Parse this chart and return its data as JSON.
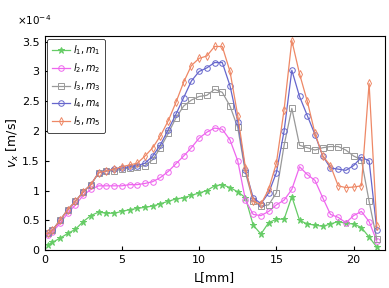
{
  "xlabel": "L[mm]",
  "ylabel": "v_x [m/s]",
  "xlim": [
    0,
    22
  ],
  "ylim": [
    0,
    3.6
  ],
  "ytick_vals": [
    0,
    0.5,
    1.0,
    1.5,
    2.0,
    2.5,
    3.0,
    3.5
  ],
  "ytick_labels": [
    "0",
    "0.5",
    "1",
    "1.5",
    "2",
    "2.5",
    "3",
    "3.5"
  ],
  "xtick_vals": [
    0,
    5,
    10,
    15,
    20
  ],
  "xtick_labels": [
    "0",
    "5",
    "10",
    "15",
    "20"
  ],
  "exponent_text": "x 10^{-4}",
  "series": [
    {
      "label": "$l_1,  m_1$",
      "color": "#66cc66",
      "marker": "*",
      "markersize": 5,
      "markerfacecolor": "#66cc66",
      "x": [
        0.2,
        0.5,
        1.0,
        1.5,
        2.0,
        2.5,
        3.0,
        3.5,
        4.0,
        4.5,
        5.0,
        5.5,
        6.0,
        6.5,
        7.0,
        7.5,
        8.0,
        8.5,
        9.0,
        9.5,
        10.0,
        10.5,
        11.0,
        11.5,
        12.0,
        12.5,
        13.0,
        13.5,
        14.0,
        14.5,
        15.0,
        15.5,
        16.0,
        16.5,
        17.0,
        17.5,
        18.0,
        18.5,
        19.0,
        19.5,
        20.0,
        20.5,
        21.0,
        21.5
      ],
      "y": [
        0.08,
        0.13,
        0.2,
        0.28,
        0.35,
        0.48,
        0.58,
        0.64,
        0.62,
        0.62,
        0.65,
        0.68,
        0.7,
        0.72,
        0.74,
        0.78,
        0.82,
        0.86,
        0.88,
        0.92,
        0.96,
        1.0,
        1.08,
        1.1,
        1.05,
        0.98,
        0.88,
        0.42,
        0.27,
        0.46,
        0.52,
        0.52,
        0.9,
        0.5,
        0.44,
        0.42,
        0.4,
        0.44,
        0.48,
        0.45,
        0.44,
        0.38,
        0.22,
        0.05
      ]
    },
    {
      "label": "$l_2,  m_2$",
      "color": "#ee66ee",
      "marker": "o",
      "markersize": 4,
      "markerfacecolor": "none",
      "x": [
        0.2,
        0.5,
        1.0,
        1.5,
        2.0,
        2.5,
        3.0,
        3.5,
        4.0,
        4.5,
        5.0,
        5.5,
        6.0,
        6.5,
        7.0,
        7.5,
        8.0,
        8.5,
        9.0,
        9.5,
        10.0,
        10.5,
        11.0,
        11.5,
        12.0,
        12.5,
        13.0,
        13.5,
        14.0,
        14.5,
        15.0,
        15.5,
        16.0,
        16.5,
        17.0,
        17.5,
        18.0,
        18.5,
        19.0,
        19.5,
        20.0,
        20.5,
        21.0,
        21.5
      ],
      "y": [
        0.26,
        0.3,
        0.45,
        0.62,
        0.76,
        0.92,
        1.02,
        1.08,
        1.08,
        1.08,
        1.08,
        1.1,
        1.1,
        1.12,
        1.15,
        1.22,
        1.32,
        1.45,
        1.58,
        1.72,
        1.88,
        1.98,
        2.05,
        2.03,
        1.85,
        1.5,
        0.84,
        0.6,
        0.58,
        0.65,
        0.76,
        0.84,
        1.02,
        1.4,
        1.27,
        1.17,
        0.88,
        0.6,
        0.55,
        0.46,
        0.58,
        0.65,
        0.48,
        0.15
      ]
    },
    {
      "label": "$l_3,  m_3$",
      "color": "#999999",
      "marker": "s",
      "markersize": 4,
      "markerfacecolor": "none",
      "x": [
        0.2,
        0.5,
        1.0,
        1.5,
        2.0,
        2.5,
        3.0,
        3.5,
        4.0,
        4.5,
        5.0,
        5.5,
        6.0,
        6.5,
        7.0,
        7.5,
        8.0,
        8.5,
        9.0,
        9.5,
        10.0,
        10.5,
        11.0,
        11.5,
        12.0,
        12.5,
        13.0,
        13.5,
        14.0,
        14.5,
        15.0,
        15.5,
        16.0,
        16.5,
        17.0,
        17.5,
        18.0,
        18.5,
        19.0,
        19.5,
        20.0,
        20.5,
        21.0,
        21.5
      ],
      "y": [
        0.28,
        0.33,
        0.5,
        0.68,
        0.82,
        0.98,
        1.1,
        1.3,
        1.33,
        1.33,
        1.36,
        1.38,
        1.4,
        1.42,
        1.52,
        1.72,
        1.96,
        2.22,
        2.42,
        2.52,
        2.58,
        2.6,
        2.7,
        2.65,
        2.42,
        2.06,
        1.3,
        0.82,
        0.74,
        0.76,
        0.96,
        1.76,
        2.38,
        1.76,
        1.72,
        1.68,
        1.72,
        1.74,
        1.74,
        1.68,
        1.58,
        1.52,
        0.82,
        0.18
      ]
    },
    {
      "label": "$l_4,  m_4$",
      "color": "#6666cc",
      "marker": "o",
      "markersize": 4,
      "markerfacecolor": "none",
      "x": [
        0.2,
        0.5,
        1.0,
        1.5,
        2.0,
        2.5,
        3.0,
        3.5,
        4.0,
        4.5,
        5.0,
        5.5,
        6.0,
        6.5,
        7.0,
        7.5,
        8.0,
        8.5,
        9.0,
        9.5,
        10.0,
        10.5,
        11.0,
        11.5,
        12.0,
        12.5,
        13.0,
        13.5,
        14.0,
        14.5,
        15.0,
        15.5,
        16.0,
        16.5,
        17.0,
        17.5,
        18.0,
        18.5,
        19.0,
        19.5,
        20.0,
        20.5,
        21.0,
        21.5
      ],
      "y": [
        0.28,
        0.33,
        0.5,
        0.68,
        0.82,
        0.98,
        1.1,
        1.3,
        1.33,
        1.36,
        1.38,
        1.4,
        1.42,
        1.46,
        1.58,
        1.77,
        2.02,
        2.28,
        2.56,
        2.84,
        3.0,
        3.06,
        3.15,
        3.15,
        2.76,
        2.16,
        1.34,
        0.88,
        0.78,
        0.96,
        1.3,
        2.0,
        3.02,
        2.58,
        2.26,
        1.94,
        1.58,
        1.38,
        1.36,
        1.34,
        1.42,
        1.56,
        1.5,
        0.34
      ]
    },
    {
      "label": "$l_5,  m_5$",
      "color": "#ee8866",
      "marker": "d",
      "markersize": 4,
      "markerfacecolor": "none",
      "x": [
        0.2,
        0.5,
        1.0,
        1.5,
        2.0,
        2.5,
        3.0,
        3.5,
        4.0,
        4.5,
        5.0,
        5.5,
        6.0,
        6.5,
        7.0,
        7.5,
        8.0,
        8.5,
        9.0,
        9.5,
        10.0,
        10.5,
        11.0,
        11.5,
        12.0,
        12.5,
        13.0,
        13.5,
        14.0,
        14.5,
        15.0,
        15.5,
        16.0,
        16.5,
        17.0,
        17.5,
        18.0,
        18.5,
        19.0,
        19.5,
        20.0,
        20.5,
        21.0,
        21.5
      ],
      "y": [
        0.28,
        0.33,
        0.5,
        0.68,
        0.82,
        0.98,
        1.1,
        1.3,
        1.33,
        1.36,
        1.4,
        1.43,
        1.46,
        1.58,
        1.72,
        1.92,
        2.17,
        2.48,
        2.82,
        3.1,
        3.22,
        3.26,
        3.42,
        3.42,
        3.0,
        2.26,
        1.38,
        0.82,
        0.77,
        1.02,
        1.46,
        2.36,
        3.52,
        2.96,
        2.5,
        1.96,
        1.58,
        1.42,
        1.08,
        1.05,
        1.06,
        1.08,
        2.8,
        0.4
      ]
    }
  ]
}
